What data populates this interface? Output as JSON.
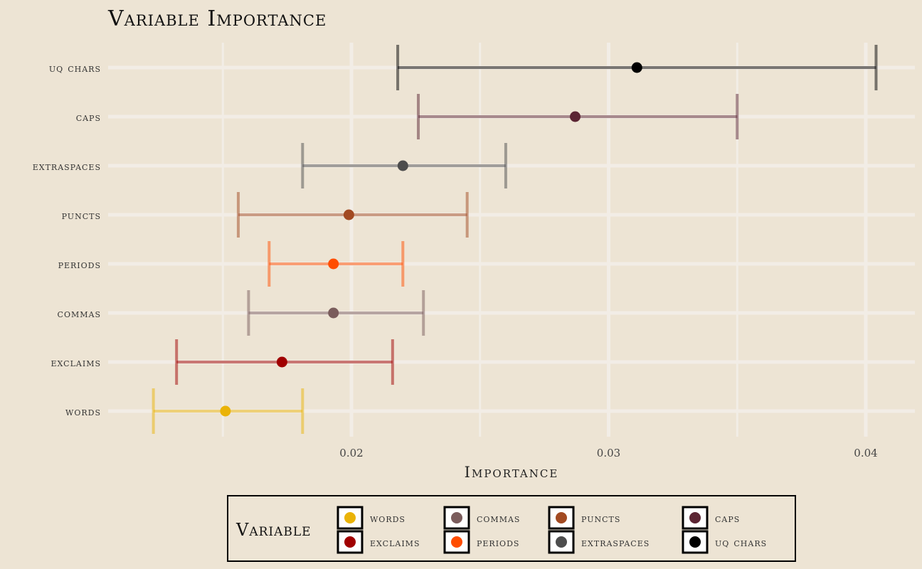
{
  "chart_data": {
    "type": "errorbar",
    "title": "Variable Importance",
    "xlabel": "Importance",
    "ylabel": "",
    "xlim": [
      0.011,
      0.0418
    ],
    "xticks": [
      0.02,
      0.03,
      0.04
    ],
    "xtick_labels": [
      "0.02",
      "0.03",
      "0.04"
    ],
    "grid": true,
    "legend_position": "bottom",
    "legend_title": "Variable",
    "categories": [
      "uq chars",
      "caps",
      "extraspaces",
      "puncts",
      "periods",
      "commas",
      "exclaims",
      "words"
    ],
    "points": [
      {
        "name": "uq chars",
        "value": 0.0311,
        "lower": 0.0218,
        "upper": 0.0404,
        "color": "#000000"
      },
      {
        "name": "caps",
        "value": 0.0287,
        "lower": 0.0226,
        "upper": 0.035,
        "color": "#5b2533"
      },
      {
        "name": "extraspaces",
        "value": 0.022,
        "lower": 0.0181,
        "upper": 0.026,
        "color": "#4d4d4d"
      },
      {
        "name": "puncts",
        "value": 0.0199,
        "lower": 0.0156,
        "upper": 0.0245,
        "color": "#a24a22"
      },
      {
        "name": "periods",
        "value": 0.0193,
        "lower": 0.0168,
        "upper": 0.022,
        "color": "#ff4d00"
      },
      {
        "name": "commas",
        "value": 0.0193,
        "lower": 0.016,
        "upper": 0.0228,
        "color": "#7a5c5c"
      },
      {
        "name": "exclaims",
        "value": 0.0173,
        "lower": 0.0132,
        "upper": 0.0216,
        "color": "#a00000"
      },
      {
        "name": "words",
        "value": 0.0151,
        "lower": 0.0123,
        "upper": 0.0181,
        "color": "#eab308"
      }
    ],
    "legend_items": [
      "words",
      "commas",
      "puncts",
      "caps",
      "exclaims",
      "periods",
      "extraspaces",
      "uq chars"
    ]
  }
}
